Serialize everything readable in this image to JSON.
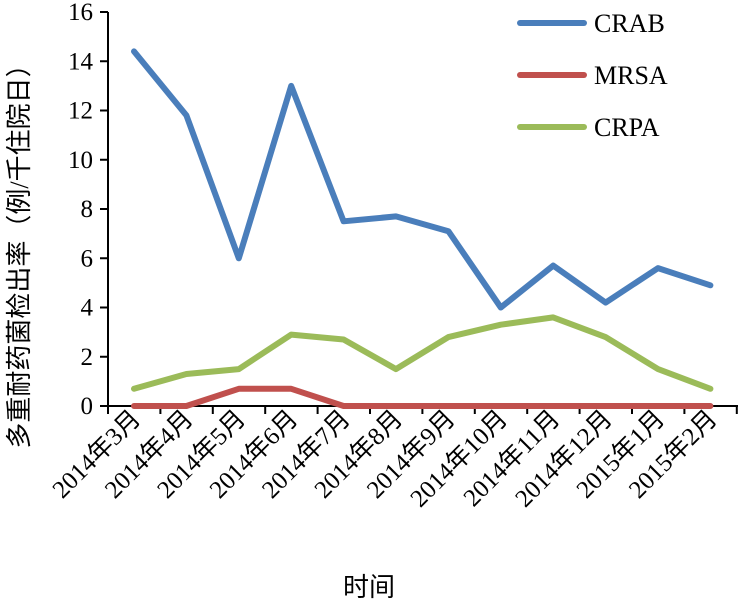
{
  "chart_data": {
    "type": "line",
    "categories": [
      "2014年3月",
      "2014年4月",
      "2014年5月",
      "2014年6月",
      "2014年7月",
      "2014年8月",
      "2014年9月",
      "2014年10月",
      "2014年11月",
      "2014年12月",
      "2015年1月",
      "2015年2月"
    ],
    "series": [
      {
        "name": "CRAB",
        "color": "#4a7ebb",
        "values": [
          14.4,
          11.8,
          6.0,
          13.0,
          7.5,
          7.7,
          7.1,
          4.0,
          5.7,
          4.2,
          5.6,
          4.9
        ]
      },
      {
        "name": "MRSA",
        "color": "#c0504d",
        "values": [
          0,
          0,
          0.7,
          0.7,
          0,
          0,
          0,
          0,
          0,
          0,
          0,
          0
        ]
      },
      {
        "name": "CRPA",
        "color": "#9bbb59",
        "values": [
          0.7,
          1.3,
          1.5,
          2.9,
          2.7,
          1.5,
          2.8,
          3.3,
          3.6,
          2.8,
          1.5,
          0.7
        ]
      }
    ],
    "xlabel": "时间",
    "ylabel": "多重耐药菌检出率（例/千住院日）",
    "ylim": [
      0,
      16
    ],
    "yticks": [
      "0",
      "2",
      "4",
      "6",
      "8",
      "10",
      "12",
      "14",
      "16"
    ],
    "grid": false,
    "legend_position": "top-right"
  }
}
